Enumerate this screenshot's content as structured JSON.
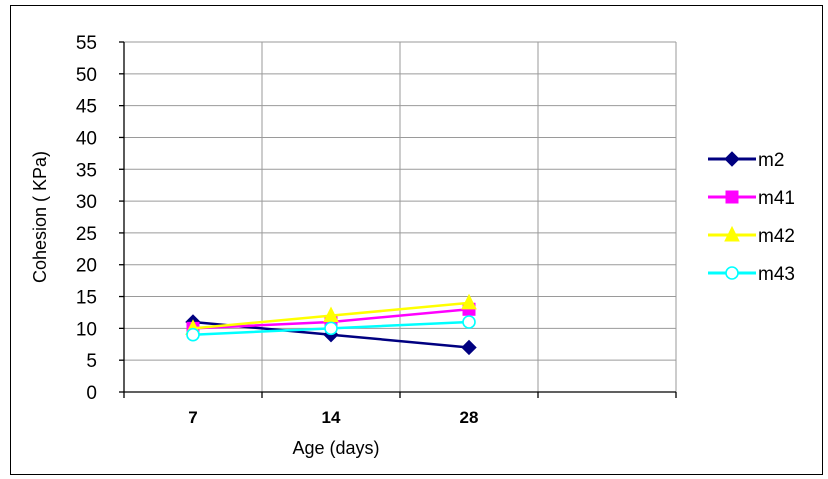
{
  "chart_data": {
    "type": "line",
    "categories": [
      "7",
      "14",
      "28"
    ],
    "xlabel": "Age (days)",
    "ylabel": "Cohesion ( KPa)",
    "ylim": [
      0,
      55
    ],
    "yticks": [
      0,
      5,
      10,
      15,
      20,
      25,
      30,
      35,
      40,
      45,
      50,
      55
    ],
    "grid": true,
    "legend_position": "right",
    "series": [
      {
        "name": "m2",
        "values": [
          11,
          9,
          7
        ],
        "color": "#000080",
        "marker": "diamond"
      },
      {
        "name": "m41",
        "values": [
          10,
          11,
          13
        ],
        "color": "#ff00ff",
        "marker": "square"
      },
      {
        "name": "m42",
        "values": [
          10,
          12,
          14
        ],
        "color": "#ffff00",
        "marker": "triangle"
      },
      {
        "name": "m43",
        "values": [
          9,
          10,
          11
        ],
        "color": "#00ffff",
        "marker": "open-circle"
      }
    ]
  }
}
